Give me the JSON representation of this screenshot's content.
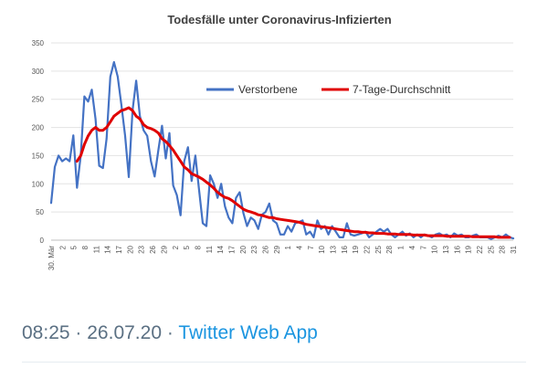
{
  "chart_data": {
    "type": "line",
    "title": "Todesfälle unter Coronavirus-Infizierten",
    "xlabel": "",
    "ylabel": "",
    "ylim": [
      0,
      350
    ],
    "yticks": [
      0,
      50,
      100,
      150,
      200,
      250,
      300,
      350
    ],
    "grid": true,
    "legend": "top-right",
    "x_tick_labels": [
      "30. Mär",
      "2",
      "5",
      "8",
      "11",
      "14",
      "17",
      "20",
      "23",
      "26",
      "29",
      "2",
      "5",
      "8",
      "11",
      "14",
      "17",
      "20",
      "23",
      "26",
      "29",
      "1",
      "4",
      "7",
      "10",
      "13",
      "16",
      "19",
      "22",
      "25",
      "28",
      "1",
      "4",
      "7",
      "10",
      "13",
      "16",
      "19",
      "22",
      "25",
      "28",
      "31"
    ],
    "series": [
      {
        "name": "Verstorbene",
        "color": "#4472c4",
        "values": [
          66,
          130,
          150,
          140,
          145,
          140,
          186,
          93,
          150,
          255,
          246,
          267,
          215,
          132,
          128,
          180,
          290,
          316,
          290,
          240,
          185,
          112,
          230,
          283,
          220,
          195,
          185,
          140,
          113,
          160,
          203,
          145,
          190,
          97,
          80,
          44,
          140,
          165,
          105,
          150,
          90,
          30,
          25,
          115,
          100,
          75,
          100,
          60,
          40,
          30,
          75,
          85,
          48,
          25,
          40,
          35,
          20,
          45,
          50,
          65,
          35,
          30,
          10,
          10,
          25,
          15,
          30,
          32,
          35,
          10,
          15,
          5,
          35,
          20,
          25,
          10,
          25,
          15,
          5,
          5,
          30,
          10,
          8,
          10,
          12,
          15,
          5,
          10,
          15,
          20,
          15,
          20,
          10,
          5,
          10,
          15,
          8,
          12,
          5,
          10,
          5,
          10,
          8,
          5,
          10,
          12,
          8,
          10,
          5,
          12,
          8,
          10,
          5,
          5,
          8,
          10,
          5,
          5,
          5,
          2,
          5,
          8,
          5,
          10,
          5,
          3
        ],
        "start_index": 0
      },
      {
        "name": "7-Tage-Durchschnitt",
        "color": "#e00000",
        "values": [
          140,
          150,
          170,
          185,
          195,
          200,
          195,
          195,
          200,
          210,
          220,
          225,
          230,
          232,
          235,
          230,
          220,
          215,
          205,
          200,
          198,
          195,
          190,
          180,
          175,
          168,
          160,
          150,
          140,
          130,
          125,
          118,
          115,
          112,
          108,
          103,
          98,
          92,
          85,
          80,
          76,
          74,
          70,
          65,
          60,
          55,
          52,
          50,
          48,
          45,
          44,
          42,
          40,
          40,
          38,
          37,
          36,
          35,
          34,
          33,
          32,
          30,
          28,
          27,
          26,
          25,
          24,
          23,
          22,
          21,
          20,
          19,
          18,
          17,
          16,
          15,
          15,
          14,
          14,
          13,
          13,
          12,
          12,
          12,
          11,
          11,
          11,
          10,
          10,
          10,
          10,
          9,
          9,
          9,
          9,
          8,
          8,
          8,
          8,
          8,
          7,
          7,
          7,
          7,
          7,
          7,
          7,
          6,
          6,
          6,
          6,
          6,
          6,
          6,
          5,
          5,
          5,
          5
        ],
        "start_index": 7
      }
    ]
  },
  "tweet": {
    "time": "08:25",
    "separator": "·",
    "date": "26.07.20",
    "source": "Twitter Web App"
  }
}
